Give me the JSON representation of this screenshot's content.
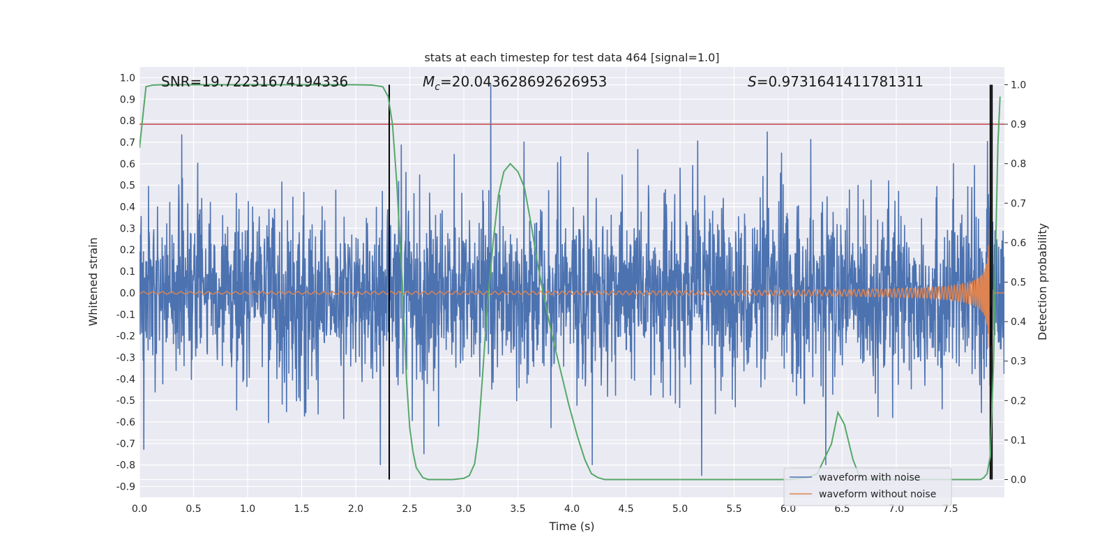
{
  "chart_data": {
    "type": "line",
    "title": "stats at each timestep for test data 464 [signal=1.0]",
    "xlabel": "Time (s)",
    "ylabel": "Whitened strain",
    "y2label": "Detection probability",
    "xlim": [
      0,
      8.0
    ],
    "ylim": [
      -0.95,
      1.05
    ],
    "y2lim": [
      -0.045,
      1.045
    ],
    "xticks": [
      0.0,
      0.5,
      1.0,
      1.5,
      2.0,
      2.5,
      3.0,
      3.5,
      4.0,
      4.5,
      5.0,
      5.5,
      6.0,
      6.5,
      7.0,
      7.5
    ],
    "xtick_labels": [
      "0.0",
      "0.5",
      "1.0",
      "1.5",
      "2.0",
      "2.5",
      "3.0",
      "3.5",
      "4.0",
      "4.5",
      "5.0",
      "5.5",
      "6.0",
      "6.5",
      "7.0",
      "7.5"
    ],
    "yticks": [
      1.0,
      0.9,
      0.8,
      0.7,
      0.6,
      0.5,
      0.4,
      0.3,
      0.2,
      0.1,
      0.0,
      -0.1,
      -0.2,
      -0.3,
      -0.4,
      -0.5,
      -0.6,
      -0.7,
      -0.8,
      -0.9
    ],
    "ytick_labels": [
      "1.0",
      "0.9",
      "0.8",
      "0.7",
      "0.6",
      "0.5",
      "0.4",
      "0.3",
      "0.2",
      "0.1",
      "0.0",
      "-0.1",
      "-0.2",
      "-0.3",
      "-0.4",
      "-0.5",
      "-0.6",
      "-0.7",
      "-0.8",
      "-0.9"
    ],
    "y2ticks": [
      1.0,
      0.9,
      0.8,
      0.7,
      0.6,
      0.5,
      0.4,
      0.3,
      0.2,
      0.1,
      0.0
    ],
    "y2tick_labels": [
      "1.0",
      "0.9",
      "0.8",
      "0.7",
      "0.6",
      "0.5",
      "0.4",
      "0.3",
      "0.2",
      "0.1",
      "0.0"
    ],
    "grid": true,
    "legend_position": "bottom-right",
    "annotations": {
      "snr": "SNR=19.72231674194336",
      "mc_symbol": "M",
      "mc_sub": "c",
      "mc_value": "=20.043628692626953",
      "s_symbol": "S",
      "s_value": "=0.9731641411781311"
    },
    "series": [
      {
        "name": "waveform with noise",
        "color": "#4c72b0",
        "kind": "noise",
        "amplitude_envelope": 0.45,
        "peak_x": 3.25,
        "peak_y": 0.97,
        "min_x": 5.2,
        "min_y": -0.85
      },
      {
        "name": "waveform without noise",
        "color": "#dd8452",
        "kind": "chirp",
        "merger_time": 7.87,
        "start_amplitude": 0.01,
        "peak_amplitude": 0.85
      },
      {
        "name": "",
        "color": "#55a868",
        "axis": "right",
        "x": [
          0.0,
          0.06,
          0.12,
          0.2,
          0.5,
          1.0,
          1.5,
          2.0,
          2.15,
          2.25,
          2.3,
          2.34,
          2.38,
          2.43,
          2.47,
          2.5,
          2.53,
          2.56,
          2.62,
          2.67,
          2.75,
          2.9,
          3.0,
          3.05,
          3.1,
          3.13,
          3.17,
          3.22,
          3.27,
          3.32,
          3.37,
          3.43,
          3.5,
          3.56,
          3.62,
          3.68,
          3.75,
          3.82,
          3.9,
          3.97,
          4.05,
          4.12,
          4.18,
          4.24,
          4.3,
          4.6,
          5.0,
          5.5,
          6.0,
          6.18,
          6.27,
          6.33,
          6.4,
          6.46,
          6.52,
          6.6,
          6.65,
          6.7,
          7.0,
          7.5,
          7.78,
          7.81,
          7.84,
          7.87,
          7.9,
          7.92,
          7.94,
          7.96
        ],
        "y": [
          0.84,
          0.995,
          0.999,
          1.0,
          1.0,
          1.0,
          1.0,
          1.0,
          0.999,
          0.995,
          0.97,
          0.9,
          0.75,
          0.5,
          0.25,
          0.13,
          0.07,
          0.03,
          0.005,
          0.0,
          0.0,
          0.0,
          0.003,
          0.01,
          0.04,
          0.1,
          0.25,
          0.45,
          0.6,
          0.72,
          0.78,
          0.8,
          0.78,
          0.74,
          0.65,
          0.55,
          0.45,
          0.36,
          0.27,
          0.19,
          0.11,
          0.05,
          0.015,
          0.005,
          0.0,
          0.0,
          0.0,
          0.0,
          0.0,
          0.005,
          0.015,
          0.05,
          0.09,
          0.17,
          0.14,
          0.05,
          0.015,
          0.0,
          0.0,
          0.0,
          0.0,
          0.005,
          0.015,
          0.06,
          0.3,
          0.6,
          0.85,
          0.97
        ]
      }
    ],
    "hlines": [
      {
        "y2": 0.9,
        "color": "#c44e52"
      }
    ],
    "vlines": [
      {
        "x": 2.31,
        "color": "#000000"
      },
      {
        "x": 7.87,
        "color": "#000000"
      },
      {
        "x": 7.885,
        "color": "#000000"
      }
    ]
  }
}
